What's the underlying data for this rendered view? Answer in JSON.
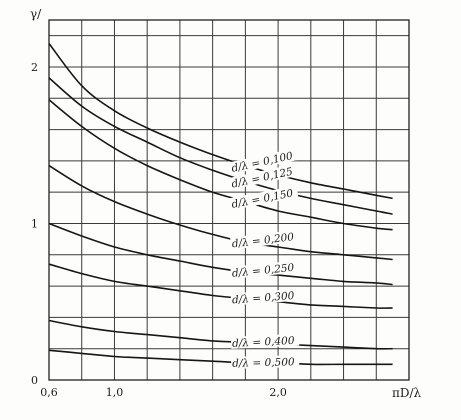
{
  "chart_data": {
    "type": "line",
    "title": "",
    "xlabel": "πD/λ",
    "ylabel": "γ/",
    "xlim": [
      0.6,
      2.8
    ],
    "ylim": [
      0,
      2.3
    ],
    "x_ticks": [
      {
        "value": 0.6,
        "label": "0,6"
      },
      {
        "value": 1.0,
        "label": "1,0"
      },
      {
        "value": 2.0,
        "label": "2,0"
      }
    ],
    "y_ticks": [
      {
        "value": 0,
        "label": "0"
      },
      {
        "value": 1,
        "label": "1"
      },
      {
        "value": 2,
        "label": "2"
      }
    ],
    "x_grid_step": 0.2,
    "y_grid_step": 0.2,
    "grid": true,
    "series": [
      {
        "name": "d/λ = 0,100",
        "x": [
          0.6,
          0.8,
          1.0,
          1.2,
          1.4,
          1.6,
          1.8,
          2.0,
          2.2,
          2.4,
          2.6,
          2.7
        ],
        "y": [
          2.15,
          1.88,
          1.72,
          1.61,
          1.52,
          1.44,
          1.37,
          1.31,
          1.26,
          1.22,
          1.18,
          1.16
        ]
      },
      {
        "name": "d/λ = 0,125",
        "x": [
          0.6,
          0.8,
          1.0,
          1.2,
          1.4,
          1.6,
          1.8,
          2.0,
          2.2,
          2.4,
          2.6,
          2.7
        ],
        "y": [
          1.93,
          1.75,
          1.62,
          1.52,
          1.42,
          1.34,
          1.27,
          1.21,
          1.16,
          1.12,
          1.08,
          1.06
        ]
      },
      {
        "name": "d/λ = 0,150",
        "x": [
          0.6,
          0.8,
          1.0,
          1.2,
          1.4,
          1.6,
          1.8,
          2.0,
          2.2,
          2.4,
          2.6,
          2.7
        ],
        "y": [
          1.79,
          1.62,
          1.48,
          1.37,
          1.28,
          1.2,
          1.14,
          1.08,
          1.04,
          1.0,
          0.97,
          0.96
        ]
      },
      {
        "name": "d/λ = 0,200",
        "x": [
          0.6,
          0.8,
          1.0,
          1.2,
          1.4,
          1.6,
          1.8,
          2.0,
          2.2,
          2.4,
          2.6,
          2.7
        ],
        "y": [
          1.37,
          1.24,
          1.14,
          1.06,
          0.99,
          0.93,
          0.88,
          0.85,
          0.82,
          0.8,
          0.78,
          0.77
        ]
      },
      {
        "name": "d/λ = 0,250",
        "x": [
          0.6,
          0.8,
          1.0,
          1.2,
          1.4,
          1.6,
          1.8,
          2.0,
          2.2,
          2.4,
          2.6,
          2.7
        ],
        "y": [
          1.0,
          0.92,
          0.85,
          0.8,
          0.76,
          0.72,
          0.69,
          0.67,
          0.65,
          0.63,
          0.62,
          0.61
        ]
      },
      {
        "name": "d/λ = 0,300",
        "x": [
          0.6,
          0.8,
          1.0,
          1.2,
          1.4,
          1.6,
          1.8,
          2.0,
          2.2,
          2.4,
          2.6,
          2.7
        ],
        "y": [
          0.74,
          0.68,
          0.63,
          0.6,
          0.57,
          0.54,
          0.52,
          0.5,
          0.48,
          0.47,
          0.46,
          0.46
        ]
      },
      {
        "name": "d/λ = 0,400",
        "x": [
          0.6,
          0.8,
          1.0,
          1.2,
          1.4,
          1.6,
          1.8,
          2.0,
          2.2,
          2.4,
          2.6,
          2.7
        ],
        "y": [
          0.38,
          0.34,
          0.31,
          0.29,
          0.27,
          0.25,
          0.24,
          0.23,
          0.22,
          0.21,
          0.2,
          0.2
        ]
      },
      {
        "name": "d/λ = 0,500",
        "x": [
          0.6,
          0.8,
          1.0,
          1.2,
          1.4,
          1.6,
          1.8,
          2.0,
          2.2,
          2.4,
          2.6,
          2.7
        ],
        "y": [
          0.19,
          0.17,
          0.15,
          0.14,
          0.13,
          0.12,
          0.11,
          0.11,
          0.1,
          0.1,
          0.1,
          0.1
        ]
      }
    ]
  }
}
